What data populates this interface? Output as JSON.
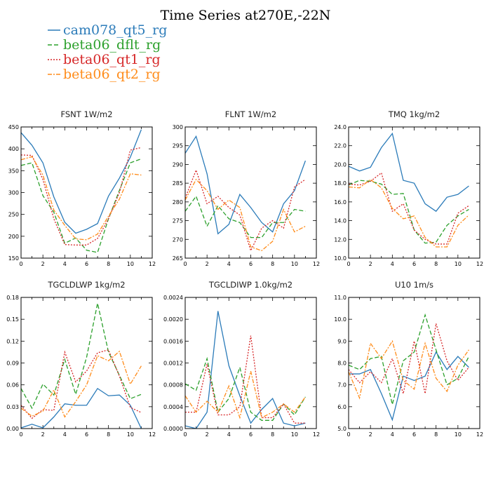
{
  "page": {
    "title": "Time Series at270E,-22N"
  },
  "legend": [
    {
      "name": "cam078_qt5_rg",
      "color": "#2b7bb9",
      "dash": "solid"
    },
    {
      "name": "beta06_dflt_rg",
      "color": "#2ca02c",
      "dash": "dashed"
    },
    {
      "name": "beta06_qt1_rg",
      "color": "#d62728",
      "dash": "dotted"
    },
    {
      "name": "beta06_qt2_rg",
      "color": "#ff8c1a",
      "dash": "dashdot"
    }
  ],
  "chart_data": [
    {
      "type": "line",
      "title": "FSNT   1W/m2",
      "xlim": [
        0,
        12
      ],
      "ylim": [
        150,
        450
      ],
      "xticks": [
        "0",
        "2",
        "4",
        "6",
        "8",
        "10",
        "12"
      ],
      "yticks": [
        "150",
        "200",
        "250",
        "300",
        "350",
        "400",
        "450"
      ],
      "x": [
        0,
        1,
        2,
        3,
        4,
        5,
        6,
        7,
        8,
        9,
        10,
        11
      ],
      "series": [
        {
          "name": "cam078_qt5_rg",
          "values": [
            437,
            408,
            368,
            290,
            232,
            207,
            216,
            229,
            292,
            333,
            381,
            444
          ]
        },
        {
          "name": "beta06_dflt_rg",
          "values": [
            362,
            368,
            293,
            255,
            184,
            196,
            168,
            163,
            240,
            305,
            368,
            377
          ]
        },
        {
          "name": "beta06_qt1_rg",
          "values": [
            386,
            385,
            330,
            240,
            181,
            180,
            180,
            195,
            240,
            300,
            397,
            403
          ]
        },
        {
          "name": "beta06_qt2_rg",
          "values": [
            375,
            382,
            340,
            260,
            225,
            194,
            192,
            205,
            246,
            285,
            343,
            340
          ]
        }
      ]
    },
    {
      "type": "line",
      "title": "FLNT   1W/m2",
      "xlim": [
        0,
        12
      ],
      "ylim": [
        265,
        300
      ],
      "xticks": [
        "0",
        "2",
        "4",
        "6",
        "8",
        "10",
        "12"
      ],
      "yticks": [
        "265",
        "270",
        "275",
        "280",
        "285",
        "290",
        "295",
        "300"
      ],
      "x": [
        0,
        1,
        2,
        3,
        4,
        5,
        6,
        7,
        8,
        9,
        10,
        11
      ],
      "series": [
        {
          "name": "cam078_qt5_rg",
          "values": [
            293,
            297.5,
            287.5,
            271.5,
            274,
            282,
            278.5,
            274.5,
            272,
            279.5,
            283,
            291
          ]
        },
        {
          "name": "beta06_dflt_rg",
          "values": [
            277.5,
            281.5,
            273.5,
            279,
            275.5,
            274.5,
            270.5,
            270.5,
            274.5,
            274.5,
            278,
            277.5
          ]
        },
        {
          "name": "beta06_qt1_rg",
          "values": [
            281,
            288.5,
            279.5,
            281.5,
            278.5,
            276.5,
            267,
            273,
            275,
            273,
            284,
            286
          ]
        },
        {
          "name": "beta06_qt2_rg",
          "values": [
            280.5,
            286,
            283,
            278,
            280.5,
            278.5,
            268,
            267,
            269.5,
            278,
            272,
            273.5
          ]
        }
      ]
    },
    {
      "type": "line",
      "title": "TMQ   1kg/m2",
      "xlim": [
        0,
        12
      ],
      "ylim": [
        10,
        24
      ],
      "xticks": [
        "0",
        "2",
        "4",
        "6",
        "8",
        "10",
        "12"
      ],
      "yticks": [
        "10.0",
        "12.0",
        "14.0",
        "16.0",
        "18.0",
        "20.0",
        "22.0",
        "24.0"
      ],
      "x": [
        0,
        1,
        2,
        3,
        4,
        5,
        6,
        7,
        8,
        9,
        10,
        11
      ],
      "series": [
        {
          "name": "cam078_qt5_rg",
          "values": [
            19.8,
            19.3,
            19.7,
            21.8,
            23.3,
            18.3,
            18.0,
            15.8,
            15.0,
            16.5,
            16.8,
            17.7
          ]
        },
        {
          "name": "beta06_dflt_rg",
          "values": [
            17.8,
            18.3,
            18.2,
            17.9,
            16.8,
            16.9,
            13.0,
            11.6,
            11.7,
            13.5,
            14.5,
            15.2
          ]
        },
        {
          "name": "beta06_qt1_rg",
          "values": [
            17.9,
            17.8,
            18.2,
            19.1,
            15.0,
            15.8,
            13.0,
            12.0,
            11.5,
            11.5,
            14.8,
            15.6
          ]
        },
        {
          "name": "beta06_qt2_rg",
          "values": [
            17.6,
            17.5,
            18.4,
            17.5,
            15.3,
            14.2,
            14.5,
            12.2,
            11.2,
            11.2,
            13.5,
            14.6
          ]
        }
      ]
    },
    {
      "type": "line",
      "title": "TGCLDLWP   1kg/m2",
      "xlim": [
        0,
        12
      ],
      "ylim": [
        0,
        0.18
      ],
      "xticks": [
        "0",
        "2",
        "4",
        "6",
        "8",
        "10",
        "12"
      ],
      "yticks": [
        "0.00",
        "0.03",
        "0.06",
        "0.09",
        "0.12",
        "0.15",
        "0.18"
      ],
      "x": [
        0,
        1,
        2,
        3,
        4,
        5,
        6,
        7,
        8,
        9,
        10,
        11
      ],
      "series": [
        {
          "name": "cam078_qt5_rg",
          "values": [
            0.001,
            0.006,
            0.001,
            0.016,
            0.034,
            0.032,
            0.032,
            0.055,
            0.045,
            0.046,
            0.032,
            0.0
          ]
        },
        {
          "name": "beta06_dflt_rg",
          "values": [
            0.055,
            0.028,
            0.061,
            0.046,
            0.095,
            0.047,
            0.098,
            0.172,
            0.105,
            0.073,
            0.041,
            0.047
          ]
        },
        {
          "name": "beta06_qt1_rg",
          "values": [
            0.032,
            0.014,
            0.026,
            0.025,
            0.105,
            0.064,
            0.079,
            0.104,
            0.108,
            0.072,
            0.029,
            0.022
          ]
        },
        {
          "name": "beta06_qt2_rg",
          "values": [
            0.028,
            0.017,
            0.024,
            0.053,
            0.016,
            0.037,
            0.06,
            0.1,
            0.093,
            0.106,
            0.061,
            0.086
          ]
        }
      ]
    },
    {
      "type": "line",
      "title": "TGCLDIWP   1.0kg/m2",
      "xlim": [
        0,
        12
      ],
      "ylim": [
        0,
        0.0024
      ],
      "xticks": [
        "0",
        "2",
        "4",
        "6",
        "8",
        "10",
        "12"
      ],
      "yticks": [
        "0.0000",
        "0.0004",
        "0.0008",
        "0.0012",
        "0.0016",
        "0.0020",
        "0.0024"
      ],
      "x": [
        0,
        1,
        2,
        3,
        4,
        5,
        6,
        7,
        8,
        9,
        10,
        11
      ],
      "series": [
        {
          "name": "cam078_qt5_rg",
          "values": [
            5e-05,
            0.0,
            0.0003,
            0.00215,
            0.00115,
            0.0006,
            0.0001,
            0.00035,
            0.00055,
            0.0001,
            5e-05,
            0.0001
          ]
        },
        {
          "name": "beta06_dflt_rg",
          "values": [
            0.00082,
            0.0007,
            0.00128,
            0.0003,
            0.00055,
            0.00112,
            0.0003,
            0.00015,
            0.00015,
            0.00045,
            0.00025,
            0.00058
          ]
        },
        {
          "name": "beta06_qt1_rg",
          "values": [
            0.0003,
            0.0003,
            0.00118,
            0.00025,
            0.00025,
            0.0004,
            0.0017,
            0.0002,
            0.0002,
            0.00045,
            0.0001,
            0.0001
          ]
        },
        {
          "name": "beta06_qt2_rg",
          "values": [
            0.0006,
            0.0003,
            0.0005,
            0.0003,
            0.00078,
            0.0002,
            0.00105,
            0.0002,
            0.0003,
            0.00045,
            0.0003,
            0.00058
          ]
        }
      ]
    },
    {
      "type": "line",
      "title": "U10   1m/s",
      "xlim": [
        0,
        12
      ],
      "ylim": [
        5,
        11
      ],
      "xticks": [
        "0",
        "2",
        "4",
        "6",
        "8",
        "10",
        "12"
      ],
      "yticks": [
        "5.0",
        "6.0",
        "7.0",
        "8.0",
        "9.0",
        "10.0",
        "11.0"
      ],
      "x": [
        0,
        1,
        2,
        3,
        4,
        5,
        6,
        7,
        8,
        9,
        10,
        11
      ],
      "series": [
        {
          "name": "cam078_qt5_rg",
          "values": [
            7.5,
            7.5,
            7.7,
            6.6,
            5.4,
            7.4,
            7.2,
            7.4,
            8.5,
            7.7,
            8.3,
            7.8
          ]
        },
        {
          "name": "beta06_dflt_rg",
          "values": [
            7.9,
            7.7,
            8.2,
            8.3,
            6.1,
            8.1,
            8.5,
            10.2,
            8.6,
            7.0,
            7.3,
            8.3
          ]
        },
        {
          "name": "beta06_qt1_rg",
          "values": [
            7.7,
            7.1,
            7.6,
            7.1,
            8.2,
            6.6,
            9.0,
            6.6,
            9.8,
            8.1,
            7.2,
            7.8
          ]
        },
        {
          "name": "beta06_qt2_rg",
          "values": [
            7.6,
            6.4,
            8.9,
            8.2,
            9.0,
            7.2,
            6.8,
            8.9,
            7.3,
            6.7,
            7.9,
            8.6
          ]
        }
      ]
    }
  ]
}
